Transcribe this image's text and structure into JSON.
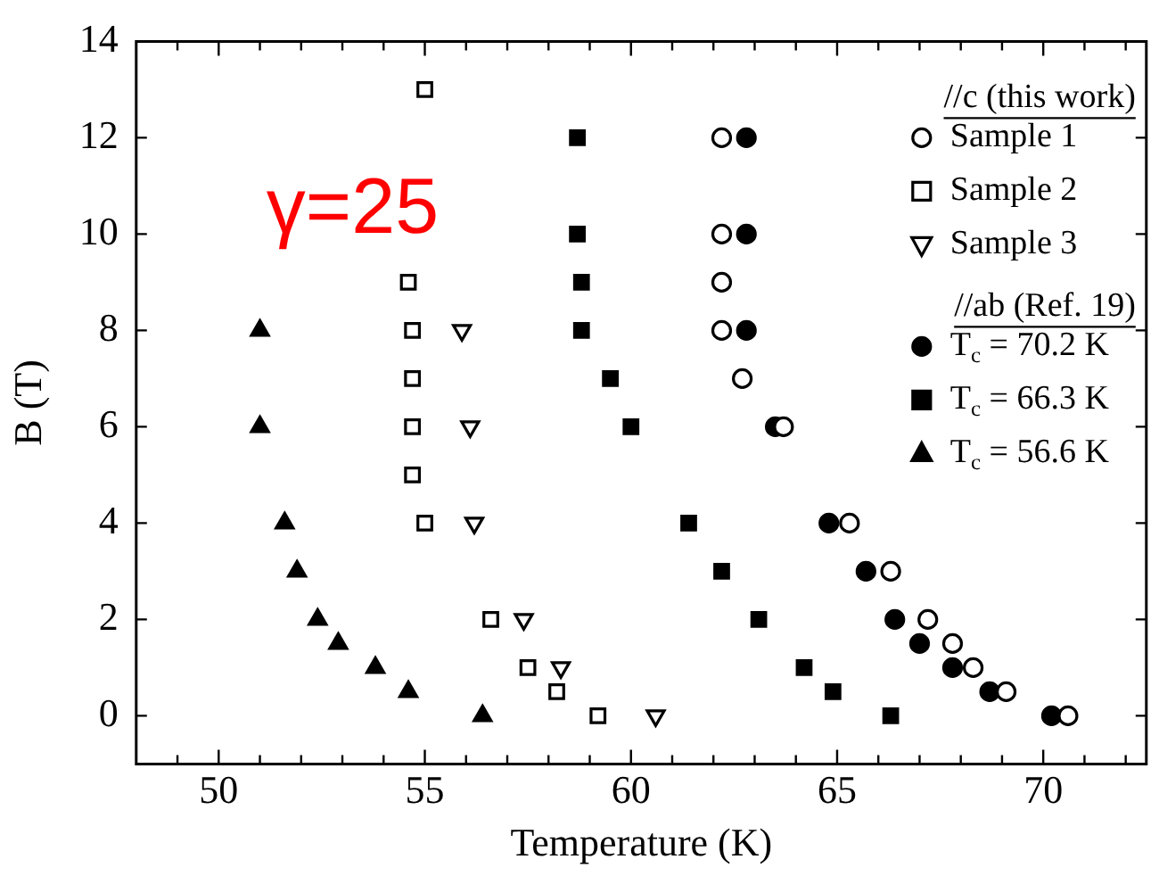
{
  "chart_data": {
    "type": "scatter",
    "xlabel": "Temperature (K)",
    "ylabel": "B (T)",
    "legend_title": "//c (this work)",
    "annotations": [
      "//ab (Ref. 19)",
      "γ=25"
    ],
    "xlim": [
      48,
      72.5
    ],
    "ylim": [
      -1,
      14
    ],
    "xticks": [
      {
        "value": 49,
        "label": null
      },
      50,
      {
        "value": 51,
        "label": null
      },
      {
        "value": 52,
        "label": null
      },
      {
        "value": 53,
        "label": null
      },
      {
        "value": 54,
        "label": null
      },
      55,
      {
        "value": 56,
        "label": null
      },
      {
        "value": 57,
        "label": null
      },
      {
        "value": 58,
        "label": null
      },
      {
        "value": 59,
        "label": null
      },
      60,
      {
        "value": 61,
        "label": null
      },
      {
        "value": 62,
        "label": null
      },
      {
        "value": 63,
        "label": null
      },
      {
        "value": 64,
        "label": null
      },
      65,
      {
        "value": 66,
        "label": null
      },
      {
        "value": 67,
        "label": null
      },
      {
        "value": 68,
        "label": null
      },
      {
        "value": 69,
        "label": null
      },
      70,
      {
        "value": 71,
        "label": null
      },
      {
        "value": 72,
        "label": null
      }
    ],
    "yticks": [
      0,
      2,
      4,
      6,
      8,
      10,
      12,
      14
    ],
    "grid": false,
    "legend": "top right",
    "series": [
      {
        "name": "Sample 1",
        "color": "#000000",
        "marker": "circle-open",
        "x": [
          62.2,
          62.2,
          62.2,
          62.2,
          62.7,
          63.7,
          65.3,
          66.3,
          67.2,
          67.8,
          68.3,
          69.1,
          70.6
        ],
        "values": [
          12,
          10,
          9,
          8,
          7,
          6,
          4,
          3,
          2,
          1.5,
          1,
          0.5,
          0
        ]
      },
      {
        "name": "Sample 2",
        "color": "#000000",
        "marker": "square-open",
        "x": [
          55.0,
          54.6,
          54.7,
          54.7,
          54.7,
          54.7,
          55.0,
          56.6,
          57.5,
          58.2,
          59.2
        ],
        "values": [
          13,
          9,
          8,
          7,
          6,
          5,
          4,
          2,
          1,
          0.5,
          0
        ]
      },
      {
        "name": "Sample 3",
        "color": "#000000",
        "marker": "triangle-down-open",
        "x": [
          55.9,
          56.1,
          56.2,
          57.4,
          58.3,
          60.6
        ],
        "values": [
          8,
          6,
          4,
          2,
          1,
          0
        ]
      },
      {
        "name": "T$_{c}$ = 70.2 K",
        "color": "#000000",
        "marker": "circle",
        "x": [
          62.8,
          62.8,
          62.8,
          63.5,
          64.8,
          65.7,
          66.4,
          67.0,
          67.8,
          68.7,
          70.2
        ],
        "values": [
          12,
          10,
          8,
          6,
          4,
          3,
          2,
          1.5,
          1,
          0.5,
          0
        ]
      },
      {
        "name": "T$_{c}$ = 66.3 K",
        "color": "#000000",
        "marker": "square",
        "x": [
          58.7,
          58.7,
          58.8,
          58.8,
          59.5,
          60.0,
          61.4,
          62.2,
          63.1,
          64.2,
          64.9,
          66.3
        ],
        "values": [
          12,
          10,
          9,
          8,
          7,
          6,
          4,
          3,
          2,
          1,
          0.5,
          0
        ]
      },
      {
        "name": "T$_{c}$ = 56.6 K",
        "color": "#000000",
        "marker": "triangle",
        "x": [
          51.0,
          51.0,
          51.6,
          51.9,
          52.4,
          52.9,
          53.8,
          54.6,
          56.4
        ],
        "values": [
          8,
          6,
          4,
          3,
          2,
          1.5,
          1,
          0.5,
          0
        ]
      }
    ]
  }
}
